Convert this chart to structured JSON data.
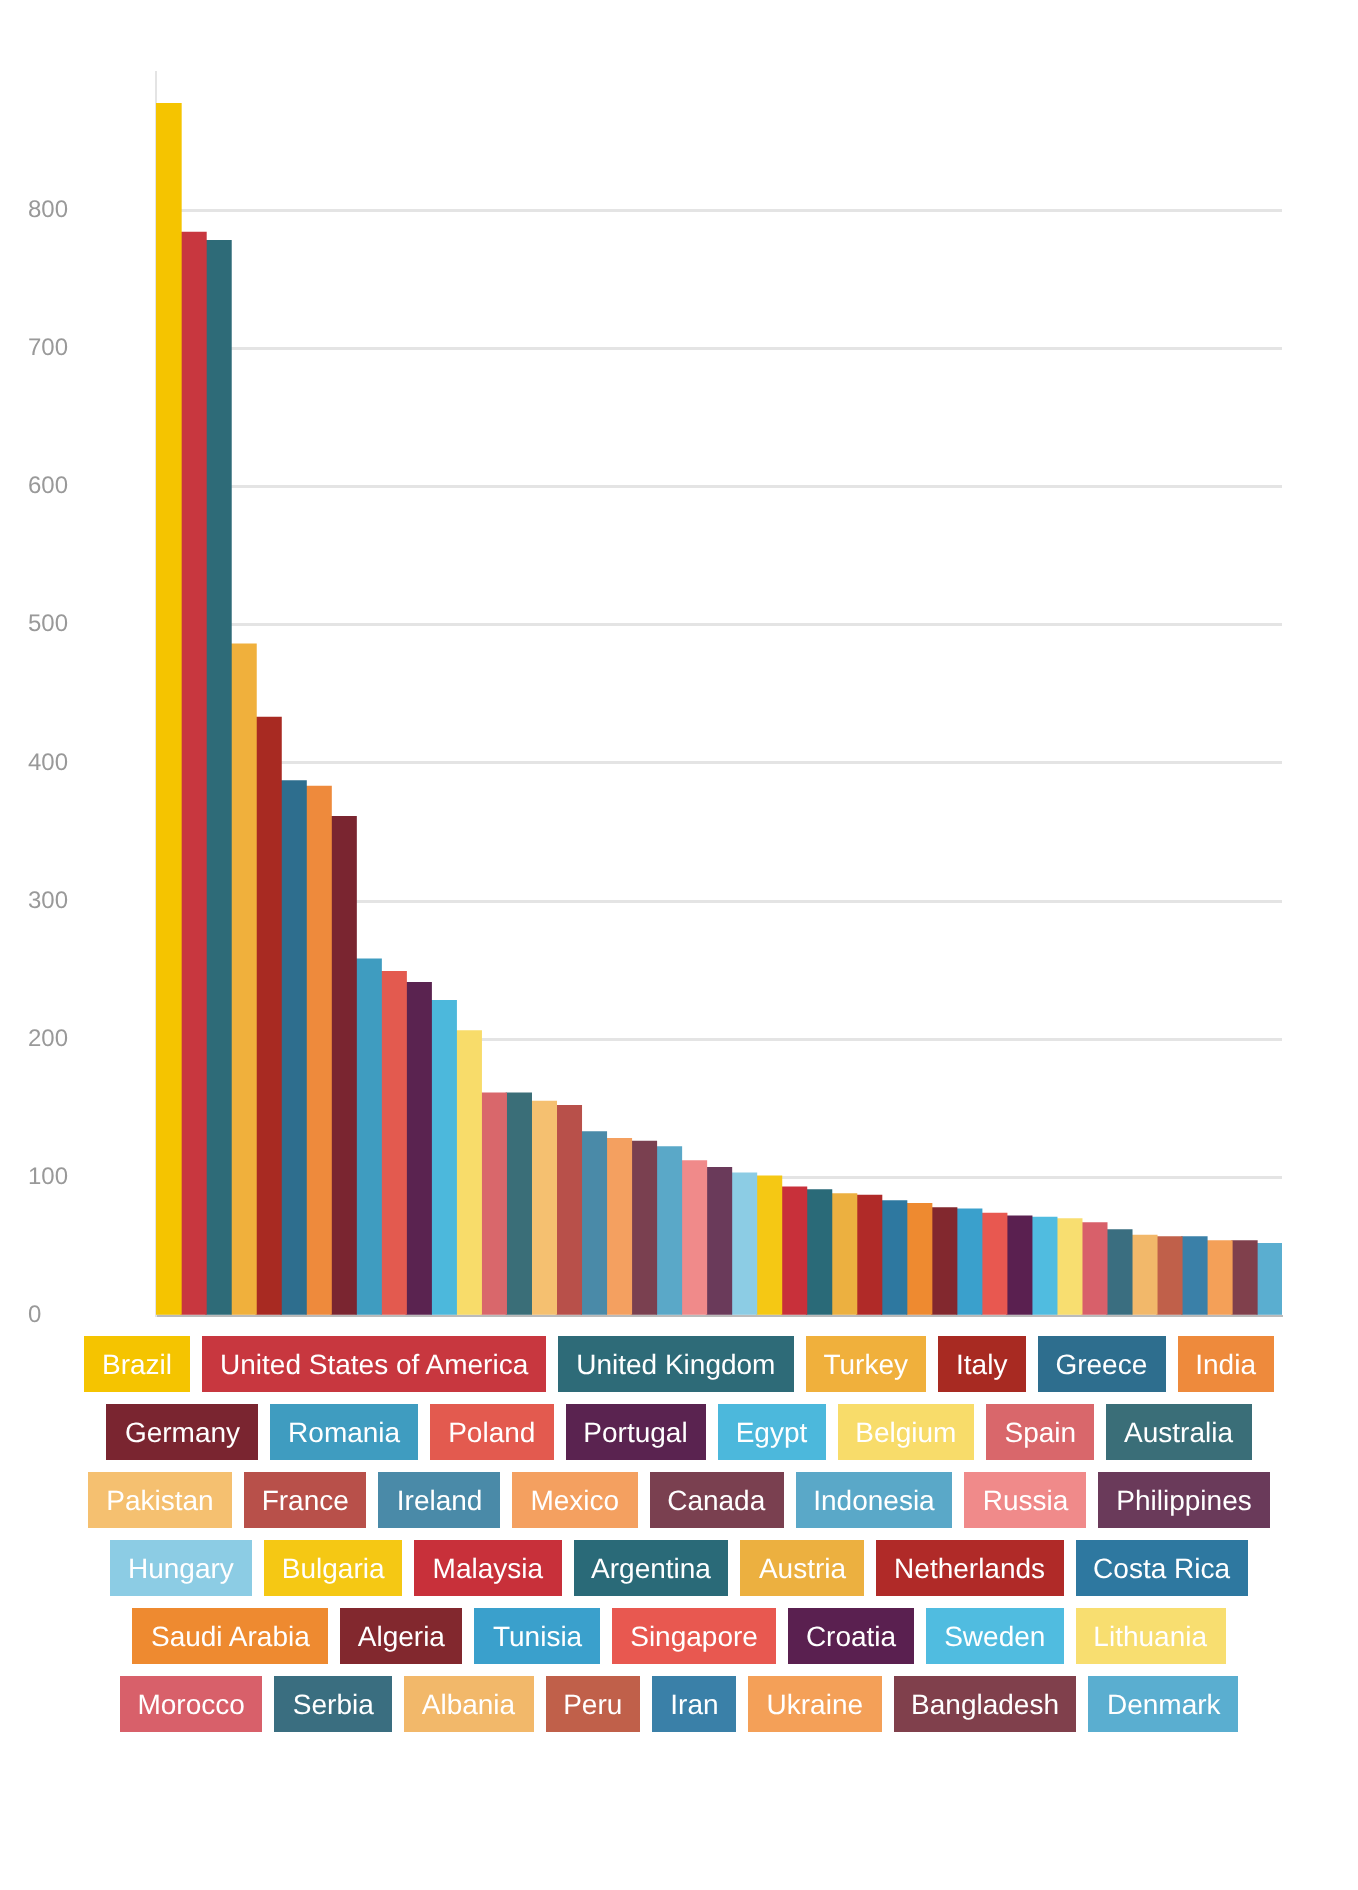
{
  "chart_data": {
    "type": "bar",
    "categories": [
      null,
      null,
      null,
      null,
      null,
      null,
      null,
      null,
      null,
      null,
      null,
      null,
      null,
      null,
      null,
      null,
      null,
      null,
      null,
      null,
      null,
      null,
      null,
      null,
      null,
      null,
      null,
      null,
      null,
      null,
      null,
      null,
      null,
      null,
      null,
      null,
      null,
      null,
      null,
      null,
      null,
      null,
      null,
      null,
      null
    ],
    "series": [
      {
        "name": "Brazil",
        "color": "#f5c400",
        "values": [
          877,
          null,
          null,
          null,
          null,
          null,
          null,
          null,
          null,
          null,
          null,
          null,
          null,
          null,
          null,
          null,
          null,
          null,
          null,
          null,
          null,
          null,
          null,
          null,
          null,
          null,
          null,
          null,
          null,
          null,
          null,
          null,
          null,
          null,
          null,
          null,
          null,
          null,
          null,
          null,
          null,
          null,
          null,
          null,
          null
        ]
      },
      {
        "name": "United States of America",
        "color": "#c8373f",
        "values": [
          null,
          784,
          null,
          null,
          null,
          null,
          null,
          null,
          null,
          null,
          null,
          null,
          null,
          null,
          null,
          null,
          null,
          null,
          null,
          null,
          null,
          null,
          null,
          null,
          null,
          null,
          null,
          null,
          null,
          null,
          null,
          null,
          null,
          null,
          null,
          null,
          null,
          null,
          null,
          null,
          null,
          null,
          null,
          null,
          null
        ]
      },
      {
        "name": "United Kingdom",
        "color": "#2e6b78",
        "values": [
          null,
          null,
          778,
          null,
          null,
          null,
          null,
          null,
          null,
          null,
          null,
          null,
          null,
          null,
          null,
          null,
          null,
          null,
          null,
          null,
          null,
          null,
          null,
          null,
          null,
          null,
          null,
          null,
          null,
          null,
          null,
          null,
          null,
          null,
          null,
          null,
          null,
          null,
          null,
          null,
          null,
          null,
          null,
          null,
          null
        ]
      },
      {
        "name": "Turkey",
        "color": "#f0b03c",
        "values": [
          null,
          null,
          null,
          486,
          null,
          null,
          null,
          null,
          null,
          null,
          null,
          null,
          null,
          null,
          null,
          null,
          null,
          null,
          null,
          null,
          null,
          null,
          null,
          null,
          null,
          null,
          null,
          null,
          null,
          null,
          null,
          null,
          null,
          null,
          null,
          null,
          null,
          null,
          null,
          null,
          null,
          null,
          null,
          null,
          null
        ]
      },
      {
        "name": "Italy",
        "color": "#a82a22",
        "values": [
          null,
          null,
          null,
          null,
          433,
          null,
          null,
          null,
          null,
          null,
          null,
          null,
          null,
          null,
          null,
          null,
          null,
          null,
          null,
          null,
          null,
          null,
          null,
          null,
          null,
          null,
          null,
          null,
          null,
          null,
          null,
          null,
          null,
          null,
          null,
          null,
          null,
          null,
          null,
          null,
          null,
          null,
          null,
          null,
          null
        ]
      },
      {
        "name": "Greece",
        "color": "#2e6e8e",
        "values": [
          null,
          null,
          null,
          null,
          null,
          387,
          null,
          null,
          null,
          null,
          null,
          null,
          null,
          null,
          null,
          null,
          null,
          null,
          null,
          null,
          null,
          null,
          null,
          null,
          null,
          null,
          null,
          null,
          null,
          null,
          null,
          null,
          null,
          null,
          null,
          null,
          null,
          null,
          null,
          null,
          null,
          null,
          null,
          null,
          null
        ]
      },
      {
        "name": "India",
        "color": "#ee8a3c",
        "values": [
          null,
          null,
          null,
          null,
          null,
          null,
          383,
          null,
          null,
          null,
          null,
          null,
          null,
          null,
          null,
          null,
          null,
          null,
          null,
          null,
          null,
          null,
          null,
          null,
          null,
          null,
          null,
          null,
          null,
          null,
          null,
          null,
          null,
          null,
          null,
          null,
          null,
          null,
          null,
          null,
          null,
          null,
          null,
          null,
          null
        ]
      },
      {
        "name": "Germany",
        "color": "#7a2530",
        "values": [
          null,
          null,
          null,
          null,
          null,
          null,
          null,
          361,
          null,
          null,
          null,
          null,
          null,
          null,
          null,
          null,
          null,
          null,
          null,
          null,
          null,
          null,
          null,
          null,
          null,
          null,
          null,
          null,
          null,
          null,
          null,
          null,
          null,
          null,
          null,
          null,
          null,
          null,
          null,
          null,
          null,
          null,
          null,
          null,
          null
        ]
      },
      {
        "name": "Romania",
        "color": "#3f9cc0",
        "values": [
          null,
          null,
          null,
          null,
          null,
          null,
          null,
          null,
          258,
          null,
          null,
          null,
          null,
          null,
          null,
          null,
          null,
          null,
          null,
          null,
          null,
          null,
          null,
          null,
          null,
          null,
          null,
          null,
          null,
          null,
          null,
          null,
          null,
          null,
          null,
          null,
          null,
          null,
          null,
          null,
          null,
          null,
          null,
          null,
          null
        ]
      },
      {
        "name": "Poland",
        "color": "#e35a4f",
        "values": [
          null,
          null,
          null,
          null,
          null,
          null,
          null,
          null,
          null,
          249,
          null,
          null,
          null,
          null,
          null,
          null,
          null,
          null,
          null,
          null,
          null,
          null,
          null,
          null,
          null,
          null,
          null,
          null,
          null,
          null,
          null,
          null,
          null,
          null,
          null,
          null,
          null,
          null,
          null,
          null,
          null,
          null,
          null,
          null,
          null
        ]
      },
      {
        "name": "Portugal",
        "color": "#5a2350",
        "values": [
          null,
          null,
          null,
          null,
          null,
          null,
          null,
          null,
          null,
          null,
          241,
          null,
          null,
          null,
          null,
          null,
          null,
          null,
          null,
          null,
          null,
          null,
          null,
          null,
          null,
          null,
          null,
          null,
          null,
          null,
          null,
          null,
          null,
          null,
          null,
          null,
          null,
          null,
          null,
          null,
          null,
          null,
          null,
          null,
          null
        ]
      },
      {
        "name": "Egypt",
        "color": "#4cb8dc",
        "values": [
          null,
          null,
          null,
          null,
          null,
          null,
          null,
          null,
          null,
          null,
          null,
          228,
          null,
          null,
          null,
          null,
          null,
          null,
          null,
          null,
          null,
          null,
          null,
          null,
          null,
          null,
          null,
          null,
          null,
          null,
          null,
          null,
          null,
          null,
          null,
          null,
          null,
          null,
          null,
          null,
          null,
          null,
          null,
          null,
          null
        ]
      },
      {
        "name": "Belgium",
        "color": "#f8dc6a",
        "values": [
          null,
          null,
          null,
          null,
          null,
          null,
          null,
          null,
          null,
          null,
          null,
          null,
          206,
          null,
          null,
          null,
          null,
          null,
          null,
          null,
          null,
          null,
          null,
          null,
          null,
          null,
          null,
          null,
          null,
          null,
          null,
          null,
          null,
          null,
          null,
          null,
          null,
          null,
          null,
          null,
          null,
          null,
          null,
          null,
          null
        ]
      },
      {
        "name": "Spain",
        "color": "#d9676b",
        "values": [
          null,
          null,
          null,
          null,
          null,
          null,
          null,
          null,
          null,
          null,
          null,
          null,
          null,
          161,
          null,
          null,
          null,
          null,
          null,
          null,
          null,
          null,
          null,
          null,
          null,
          null,
          null,
          null,
          null,
          null,
          null,
          null,
          null,
          null,
          null,
          null,
          null,
          null,
          null,
          null,
          null,
          null,
          null,
          null,
          null
        ]
      },
      {
        "name": "Australia",
        "color": "#3a6e78",
        "values": [
          null,
          null,
          null,
          null,
          null,
          null,
          null,
          null,
          null,
          null,
          null,
          null,
          null,
          null,
          161,
          null,
          null,
          null,
          null,
          null,
          null,
          null,
          null,
          null,
          null,
          null,
          null,
          null,
          null,
          null,
          null,
          null,
          null,
          null,
          null,
          null,
          null,
          null,
          null,
          null,
          null,
          null,
          null,
          null,
          null
        ]
      },
      {
        "name": "Pakistan",
        "color": "#f5c070",
        "values": [
          null,
          null,
          null,
          null,
          null,
          null,
          null,
          null,
          null,
          null,
          null,
          null,
          null,
          null,
          null,
          155,
          null,
          null,
          null,
          null,
          null,
          null,
          null,
          null,
          null,
          null,
          null,
          null,
          null,
          null,
          null,
          null,
          null,
          null,
          null,
          null,
          null,
          null,
          null,
          null,
          null,
          null,
          null,
          null,
          null
        ]
      },
      {
        "name": "France",
        "color": "#b8504a",
        "values": [
          null,
          null,
          null,
          null,
          null,
          null,
          null,
          null,
          null,
          null,
          null,
          null,
          null,
          null,
          null,
          null,
          152,
          null,
          null,
          null,
          null,
          null,
          null,
          null,
          null,
          null,
          null,
          null,
          null,
          null,
          null,
          null,
          null,
          null,
          null,
          null,
          null,
          null,
          null,
          null,
          null,
          null,
          null,
          null,
          null
        ]
      },
      {
        "name": "Ireland",
        "color": "#4a8aa8",
        "values": [
          null,
          null,
          null,
          null,
          null,
          null,
          null,
          null,
          null,
          null,
          null,
          null,
          null,
          null,
          null,
          null,
          null,
          133,
          null,
          null,
          null,
          null,
          null,
          null,
          null,
          null,
          null,
          null,
          null,
          null,
          null,
          null,
          null,
          null,
          null,
          null,
          null,
          null,
          null,
          null,
          null,
          null,
          null,
          null,
          null
        ]
      },
      {
        "name": "Mexico",
        "color": "#f4a060",
        "values": [
          null,
          null,
          null,
          null,
          null,
          null,
          null,
          null,
          null,
          null,
          null,
          null,
          null,
          null,
          null,
          null,
          null,
          null,
          128,
          null,
          null,
          null,
          null,
          null,
          null,
          null,
          null,
          null,
          null,
          null,
          null,
          null,
          null,
          null,
          null,
          null,
          null,
          null,
          null,
          null,
          null,
          null,
          null,
          null,
          null
        ]
      },
      {
        "name": "Canada",
        "color": "#7a4050",
        "values": [
          null,
          null,
          null,
          null,
          null,
          null,
          null,
          null,
          null,
          null,
          null,
          null,
          null,
          null,
          null,
          null,
          null,
          null,
          null,
          126,
          null,
          null,
          null,
          null,
          null,
          null,
          null,
          null,
          null,
          null,
          null,
          null,
          null,
          null,
          null,
          null,
          null,
          null,
          null,
          null,
          null,
          null,
          null,
          null,
          null
        ]
      },
      {
        "name": "Indonesia",
        "color": "#5aa8c8",
        "values": [
          null,
          null,
          null,
          null,
          null,
          null,
          null,
          null,
          null,
          null,
          null,
          null,
          null,
          null,
          null,
          null,
          null,
          null,
          null,
          null,
          122,
          null,
          null,
          null,
          null,
          null,
          null,
          null,
          null,
          null,
          null,
          null,
          null,
          null,
          null,
          null,
          null,
          null,
          null,
          null,
          null,
          null,
          null,
          null,
          null
        ]
      },
      {
        "name": "Russia",
        "color": "#f08a8a",
        "values": [
          null,
          null,
          null,
          null,
          null,
          null,
          null,
          null,
          null,
          null,
          null,
          null,
          null,
          null,
          null,
          null,
          null,
          null,
          null,
          null,
          null,
          112,
          null,
          null,
          null,
          null,
          null,
          null,
          null,
          null,
          null,
          null,
          null,
          null,
          null,
          null,
          null,
          null,
          null,
          null,
          null,
          null,
          null,
          null,
          null
        ]
      },
      {
        "name": "Philippines",
        "color": "#6a3a5a",
        "values": [
          null,
          null,
          null,
          null,
          null,
          null,
          null,
          null,
          null,
          null,
          null,
          null,
          null,
          null,
          null,
          null,
          null,
          null,
          null,
          null,
          null,
          null,
          107,
          null,
          null,
          null,
          null,
          null,
          null,
          null,
          null,
          null,
          null,
          null,
          null,
          null,
          null,
          null,
          null,
          null,
          null,
          null,
          null,
          null,
          null
        ]
      },
      {
        "name": "Hungary",
        "color": "#8ccce4",
        "values": [
          null,
          null,
          null,
          null,
          null,
          null,
          null,
          null,
          null,
          null,
          null,
          null,
          null,
          null,
          null,
          null,
          null,
          null,
          null,
          null,
          null,
          null,
          null,
          103,
          null,
          null,
          null,
          null,
          null,
          null,
          null,
          null,
          null,
          null,
          null,
          null,
          null,
          null,
          null,
          null,
          null,
          null,
          null,
          null,
          null
        ]
      },
      {
        "name": "Bulgaria",
        "color": "#f5c814",
        "values": [
          null,
          null,
          null,
          null,
          null,
          null,
          null,
          null,
          null,
          null,
          null,
          null,
          null,
          null,
          null,
          null,
          null,
          null,
          null,
          null,
          null,
          null,
          null,
          null,
          101,
          null,
          null,
          null,
          null,
          null,
          null,
          null,
          null,
          null,
          null,
          null,
          null,
          null,
          null,
          null,
          null,
          null,
          null,
          null,
          null
        ]
      },
      {
        "name": "Malaysia",
        "color": "#c8303a",
        "values": [
          null,
          null,
          null,
          null,
          null,
          null,
          null,
          null,
          null,
          null,
          null,
          null,
          null,
          null,
          null,
          null,
          null,
          null,
          null,
          null,
          null,
          null,
          null,
          null,
          null,
          93,
          null,
          null,
          null,
          null,
          null,
          null,
          null,
          null,
          null,
          null,
          null,
          null,
          null,
          null,
          null,
          null,
          null,
          null,
          null
        ]
      },
      {
        "name": "Argentina",
        "color": "#2a6a78",
        "values": [
          null,
          null,
          null,
          null,
          null,
          null,
          null,
          null,
          null,
          null,
          null,
          null,
          null,
          null,
          null,
          null,
          null,
          null,
          null,
          null,
          null,
          null,
          null,
          null,
          null,
          null,
          91,
          null,
          null,
          null,
          null,
          null,
          null,
          null,
          null,
          null,
          null,
          null,
          null,
          null,
          null,
          null,
          null,
          null,
          null
        ]
      },
      {
        "name": "Austria",
        "color": "#ecb040",
        "values": [
          null,
          null,
          null,
          null,
          null,
          null,
          null,
          null,
          null,
          null,
          null,
          null,
          null,
          null,
          null,
          null,
          null,
          null,
          null,
          null,
          null,
          null,
          null,
          null,
          null,
          null,
          null,
          88,
          null,
          null,
          null,
          null,
          null,
          null,
          null,
          null,
          null,
          null,
          null,
          null,
          null,
          null,
          null,
          null,
          null
        ]
      },
      {
        "name": "Netherlands",
        "color": "#b02a28",
        "values": [
          null,
          null,
          null,
          null,
          null,
          null,
          null,
          null,
          null,
          null,
          null,
          null,
          null,
          null,
          null,
          null,
          null,
          null,
          null,
          null,
          null,
          null,
          null,
          null,
          null,
          null,
          null,
          null,
          87,
          null,
          null,
          null,
          null,
          null,
          null,
          null,
          null,
          null,
          null,
          null,
          null,
          null,
          null,
          null,
          null
        ]
      },
      {
        "name": "Costa Rica",
        "color": "#2e78a0",
        "values": [
          null,
          null,
          null,
          null,
          null,
          null,
          null,
          null,
          null,
          null,
          null,
          null,
          null,
          null,
          null,
          null,
          null,
          null,
          null,
          null,
          null,
          null,
          null,
          null,
          null,
          null,
          null,
          null,
          null,
          83,
          null,
          null,
          null,
          null,
          null,
          null,
          null,
          null,
          null,
          null,
          null,
          null,
          null,
          null,
          null
        ]
      },
      {
        "name": "Saudi Arabia",
        "color": "#ee8a30",
        "values": [
          null,
          null,
          null,
          null,
          null,
          null,
          null,
          null,
          null,
          null,
          null,
          null,
          null,
          null,
          null,
          null,
          null,
          null,
          null,
          null,
          null,
          null,
          null,
          null,
          null,
          null,
          null,
          null,
          null,
          null,
          81,
          null,
          null,
          null,
          null,
          null,
          null,
          null,
          null,
          null,
          null,
          null,
          null,
          null,
          null
        ]
      },
      {
        "name": "Algeria",
        "color": "#82282e",
        "values": [
          null,
          null,
          null,
          null,
          null,
          null,
          null,
          null,
          null,
          null,
          null,
          null,
          null,
          null,
          null,
          null,
          null,
          null,
          null,
          null,
          null,
          null,
          null,
          null,
          null,
          null,
          null,
          null,
          null,
          null,
          null,
          78,
          null,
          null,
          null,
          null,
          null,
          null,
          null,
          null,
          null,
          null,
          null,
          null,
          null
        ]
      },
      {
        "name": "Tunisia",
        "color": "#3aa0cc",
        "values": [
          null,
          null,
          null,
          null,
          null,
          null,
          null,
          null,
          null,
          null,
          null,
          null,
          null,
          null,
          null,
          null,
          null,
          null,
          null,
          null,
          null,
          null,
          null,
          null,
          null,
          null,
          null,
          null,
          null,
          null,
          null,
          null,
          77,
          null,
          null,
          null,
          null,
          null,
          null,
          null,
          null,
          null,
          null,
          null,
          null
        ]
      },
      {
        "name": "Singapore",
        "color": "#e85850",
        "values": [
          null,
          null,
          null,
          null,
          null,
          null,
          null,
          null,
          null,
          null,
          null,
          null,
          null,
          null,
          null,
          null,
          null,
          null,
          null,
          null,
          null,
          null,
          null,
          null,
          null,
          null,
          null,
          null,
          null,
          null,
          null,
          null,
          null,
          74,
          null,
          null,
          null,
          null,
          null,
          null,
          null,
          null,
          null,
          null,
          null
        ]
      },
      {
        "name": "Croatia",
        "color": "#5a2050",
        "values": [
          null,
          null,
          null,
          null,
          null,
          null,
          null,
          null,
          null,
          null,
          null,
          null,
          null,
          null,
          null,
          null,
          null,
          null,
          null,
          null,
          null,
          null,
          null,
          null,
          null,
          null,
          null,
          null,
          null,
          null,
          null,
          null,
          null,
          null,
          72,
          null,
          null,
          null,
          null,
          null,
          null,
          null,
          null,
          null,
          null
        ]
      },
      {
        "name": "Sweden",
        "color": "#50bce0",
        "values": [
          null,
          null,
          null,
          null,
          null,
          null,
          null,
          null,
          null,
          null,
          null,
          null,
          null,
          null,
          null,
          null,
          null,
          null,
          null,
          null,
          null,
          null,
          null,
          null,
          null,
          null,
          null,
          null,
          null,
          null,
          null,
          null,
          null,
          null,
          null,
          71,
          null,
          null,
          null,
          null,
          null,
          null,
          null,
          null,
          null
        ]
      },
      {
        "name": "Lithuania",
        "color": "#f8de70",
        "values": [
          null,
          null,
          null,
          null,
          null,
          null,
          null,
          null,
          null,
          null,
          null,
          null,
          null,
          null,
          null,
          null,
          null,
          null,
          null,
          null,
          null,
          null,
          null,
          null,
          null,
          null,
          null,
          null,
          null,
          null,
          null,
          null,
          null,
          null,
          null,
          null,
          70,
          null,
          null,
          null,
          null,
          null,
          null,
          null,
          null
        ]
      },
      {
        "name": "Morocco",
        "color": "#d8606a",
        "values": [
          null,
          null,
          null,
          null,
          null,
          null,
          null,
          null,
          null,
          null,
          null,
          null,
          null,
          null,
          null,
          null,
          null,
          null,
          null,
          null,
          null,
          null,
          null,
          null,
          null,
          null,
          null,
          null,
          null,
          null,
          null,
          null,
          null,
          null,
          null,
          null,
          null,
          67,
          null,
          null,
          null,
          null,
          null,
          null,
          null
        ]
      },
      {
        "name": "Serbia",
        "color": "#3a6e80",
        "values": [
          null,
          null,
          null,
          null,
          null,
          null,
          null,
          null,
          null,
          null,
          null,
          null,
          null,
          null,
          null,
          null,
          null,
          null,
          null,
          null,
          null,
          null,
          null,
          null,
          null,
          null,
          null,
          null,
          null,
          null,
          null,
          null,
          null,
          null,
          null,
          null,
          null,
          null,
          62,
          null,
          null,
          null,
          null,
          null,
          null
        ]
      },
      {
        "name": "Albania",
        "color": "#f2b86a",
        "values": [
          null,
          null,
          null,
          null,
          null,
          null,
          null,
          null,
          null,
          null,
          null,
          null,
          null,
          null,
          null,
          null,
          null,
          null,
          null,
          null,
          null,
          null,
          null,
          null,
          null,
          null,
          null,
          null,
          null,
          null,
          null,
          null,
          null,
          null,
          null,
          null,
          null,
          null,
          null,
          58,
          null,
          null,
          null,
          null,
          null
        ]
      },
      {
        "name": "Peru",
        "color": "#c0604a",
        "values": [
          null,
          null,
          null,
          null,
          null,
          null,
          null,
          null,
          null,
          null,
          null,
          null,
          null,
          null,
          null,
          null,
          null,
          null,
          null,
          null,
          null,
          null,
          null,
          null,
          null,
          null,
          null,
          null,
          null,
          null,
          null,
          null,
          null,
          null,
          null,
          null,
          null,
          null,
          null,
          null,
          57,
          null,
          null,
          null,
          null
        ]
      },
      {
        "name": "Iran",
        "color": "#3a80a8",
        "values": [
          null,
          null,
          null,
          null,
          null,
          null,
          null,
          null,
          null,
          null,
          null,
          null,
          null,
          null,
          null,
          null,
          null,
          null,
          null,
          null,
          null,
          null,
          null,
          null,
          null,
          null,
          null,
          null,
          null,
          null,
          null,
          null,
          null,
          null,
          null,
          null,
          null,
          null,
          null,
          null,
          null,
          57,
          null,
          null,
          null
        ]
      },
      {
        "name": "Ukraine",
        "color": "#f4a058",
        "values": [
          null,
          null,
          null,
          null,
          null,
          null,
          null,
          null,
          null,
          null,
          null,
          null,
          null,
          null,
          null,
          null,
          null,
          null,
          null,
          null,
          null,
          null,
          null,
          null,
          null,
          null,
          null,
          null,
          null,
          null,
          null,
          null,
          null,
          null,
          null,
          null,
          null,
          null,
          null,
          null,
          null,
          null,
          54,
          null,
          null
        ]
      },
      {
        "name": "Bangladesh",
        "color": "#80404c",
        "values": [
          null,
          null,
          null,
          null,
          null,
          null,
          null,
          null,
          null,
          null,
          null,
          null,
          null,
          null,
          null,
          null,
          null,
          null,
          null,
          null,
          null,
          null,
          null,
          null,
          null,
          null,
          null,
          null,
          null,
          null,
          null,
          null,
          null,
          null,
          null,
          null,
          null,
          null,
          null,
          null,
          null,
          null,
          null,
          54,
          null
        ]
      },
      {
        "name": "Denmark",
        "color": "#5aaed0",
        "values": [
          null,
          null,
          null,
          null,
          null,
          null,
          null,
          null,
          null,
          null,
          null,
          null,
          null,
          null,
          null,
          null,
          null,
          null,
          null,
          null,
          null,
          null,
          null,
          null,
          null,
          null,
          null,
          null,
          null,
          null,
          null,
          null,
          null,
          null,
          null,
          null,
          null,
          null,
          null,
          null,
          null,
          null,
          null,
          null,
          52
        ]
      }
    ],
    "ylim": [
      0,
      900
    ],
    "yticks": [
      0,
      100,
      200,
      300,
      400,
      500,
      600,
      700,
      800
    ],
    "grid": "y",
    "legend": "bottom"
  }
}
